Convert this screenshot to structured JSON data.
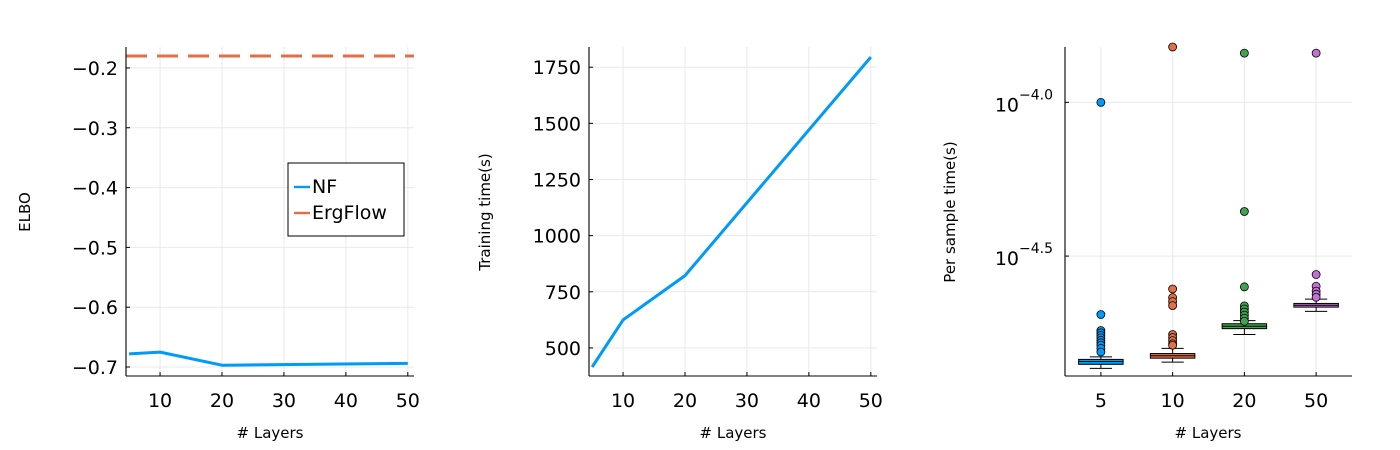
{
  "chart_data": [
    {
      "type": "line",
      "xlabel": "# Layers",
      "ylabel": "ELBO",
      "xlim": [
        4.5,
        51
      ],
      "ylim": [
        -0.715,
        -0.165
      ],
      "xticks": [
        10,
        20,
        30,
        40,
        50
      ],
      "xtick_labels": [
        "10",
        "20",
        "30",
        "40",
        "50"
      ],
      "yticks": [
        -0.7,
        -0.6,
        -0.5,
        -0.4,
        -0.3,
        -0.2
      ],
      "ytick_labels": [
        "−0.7",
        "−0.6",
        "−0.5",
        "−0.4",
        "−0.3",
        "−0.2"
      ],
      "grid": true,
      "legend": "right",
      "series": [
        {
          "name": "NF",
          "color": "#009af9",
          "style": "solid",
          "x": [
            5,
            10,
            20,
            50
          ],
          "y": [
            -0.678,
            -0.675,
            -0.697,
            -0.694
          ]
        },
        {
          "name": "ErgFlow",
          "color": "#e26f46",
          "style": "dashed",
          "x": [
            4.5,
            51
          ],
          "y": [
            -0.18,
            -0.18
          ]
        }
      ]
    },
    {
      "type": "line",
      "xlabel": "# Layers",
      "ylabel": "Training time(s)",
      "xlim": [
        4.5,
        51
      ],
      "ylim": [
        375,
        1840
      ],
      "xticks": [
        10,
        20,
        30,
        40,
        50
      ],
      "xtick_labels": [
        "10",
        "20",
        "30",
        "40",
        "50"
      ],
      "yticks": [
        500,
        750,
        1000,
        1250,
        1500,
        1750
      ],
      "ytick_labels": [
        "500",
        "750",
        "1000",
        "1250",
        "1500",
        "1750"
      ],
      "grid": true,
      "series": [
        {
          "color": "#009af9",
          "style": "solid",
          "x": [
            5,
            10,
            20,
            50
          ],
          "y": [
            415,
            625,
            822,
            1795
          ]
        }
      ]
    },
    {
      "type": "box",
      "xlabel": "# Layers",
      "ylabel": "Per sample time(s)",
      "yscale": "log10",
      "ylim": [
        -4.89,
        -3.82
      ],
      "yticks": [
        -4.0,
        -4.5
      ],
      "ytick_labels": [
        "10^−4.0",
        "10^−4.5"
      ],
      "grid": true,
      "categories": [
        "5",
        "10",
        "20",
        "50"
      ],
      "boxes": [
        {
          "color": "#009af9",
          "whisker_low": -4.865,
          "q1": -4.852,
          "median": -4.843,
          "q3": -4.836,
          "whisker_high": -4.828,
          "outliers": [
            -4.0,
            -4.69,
            -4.742,
            -4.75,
            -4.758,
            -4.766,
            -4.774,
            -4.782,
            -4.79,
            -4.8,
            -4.812
          ]
        },
        {
          "color": "#e26f46",
          "whisker_low": -4.845,
          "q1": -4.832,
          "median": -4.824,
          "q3": -4.817,
          "whisker_high": -4.8,
          "outliers": [
            -3.82,
            -4.607,
            -4.635,
            -4.648,
            -4.661,
            -4.755,
            -4.765,
            -4.775,
            -4.785,
            -4.79
          ]
        },
        {
          "color": "#3ea44e",
          "whisker_low": -4.755,
          "q1": -4.736,
          "median": -4.728,
          "q3": -4.72,
          "whisker_high": -4.71,
          "outliers": [
            -3.84,
            -4.355,
            -4.6,
            -4.662,
            -4.672,
            -4.682,
            -4.692,
            -4.702,
            -4.712
          ]
        },
        {
          "color": "#c271d2",
          "whisker_low": -4.68,
          "q1": -4.666,
          "median": -4.66,
          "q3": -4.654,
          "whisker_high": -4.64,
          "outliers": [
            -3.84,
            -4.56,
            -4.598,
            -4.614,
            -4.624,
            -4.634
          ]
        }
      ]
    }
  ]
}
